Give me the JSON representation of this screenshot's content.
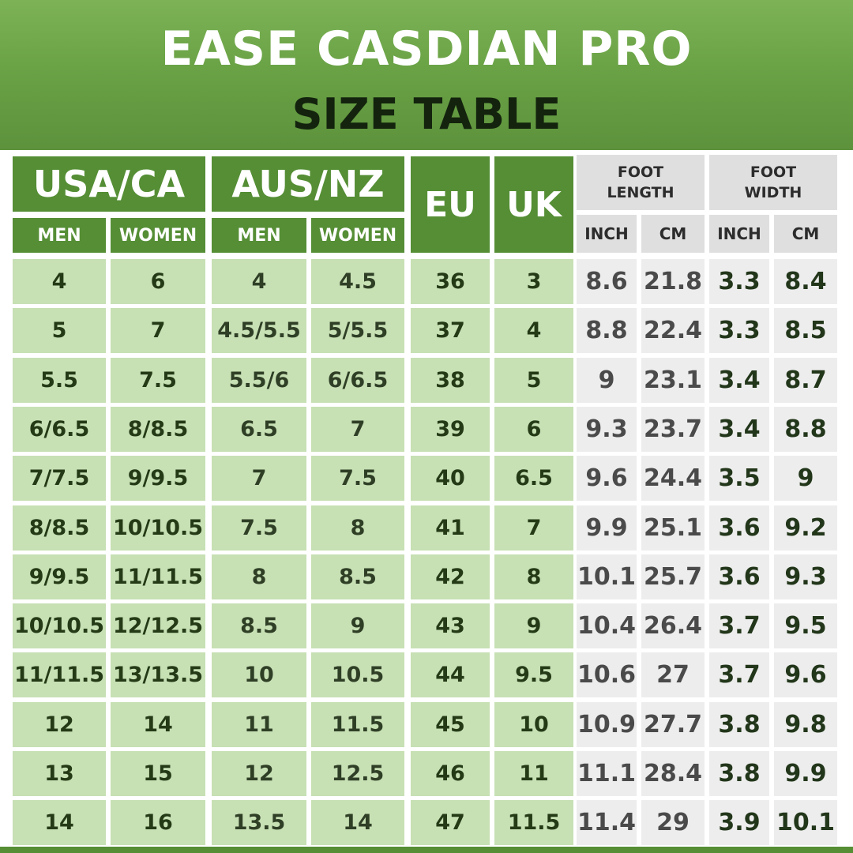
{
  "title": "EASE CASDIAN PRO",
  "subtitle": "SIZE TABLE",
  "headers": {
    "usa_ca": "USA/CA",
    "aus_nz": "AUS/NZ",
    "eu": "EU",
    "uk": "UK",
    "foot_length": "FOOT LENGTH",
    "foot_width": "FOOT WIDTH",
    "men": "MEN",
    "women": "WOMEN",
    "inch": "INCH",
    "cm": "CM"
  },
  "colors": {
    "header_green": "#558e35",
    "cell_light_green": "#c7e0b4",
    "cell_grey": "#ededed",
    "header_grey": "#dfdfdf"
  },
  "rows": [
    [
      "4",
      "6",
      "4",
      "4.5",
      "36",
      "3",
      "8.6",
      "21.8",
      "3.3",
      "8.4"
    ],
    [
      "5",
      "7",
      "4.5/5.5",
      "5/5.5",
      "37",
      "4",
      "8.8",
      "22.4",
      "3.3",
      "8.5"
    ],
    [
      "5.5",
      "7.5",
      "5.5/6",
      "6/6.5",
      "38",
      "5",
      "9",
      "23.1",
      "3.4",
      "8.7"
    ],
    [
      "6/6.5",
      "8/8.5",
      "6.5",
      "7",
      "39",
      "6",
      "9.3",
      "23.7",
      "3.4",
      "8.8"
    ],
    [
      "7/7.5",
      "9/9.5",
      "7",
      "7.5",
      "40",
      "6.5",
      "9.6",
      "24.4",
      "3.5",
      "9"
    ],
    [
      "8/8.5",
      "10/10.5",
      "7.5",
      "8",
      "41",
      "7",
      "9.9",
      "25.1",
      "3.6",
      "9.2"
    ],
    [
      "9/9.5",
      "11/11.5",
      "8",
      "8.5",
      "42",
      "8",
      "10.1",
      "25.7",
      "3.6",
      "9.3"
    ],
    [
      "10/10.5",
      "12/12.5",
      "8.5",
      "9",
      "43",
      "9",
      "10.4",
      "26.4",
      "3.7",
      "9.5"
    ],
    [
      "11/11.5",
      "13/13.5",
      "10",
      "10.5",
      "44",
      "9.5",
      "10.6",
      "27",
      "3.7",
      "9.6"
    ],
    [
      "12",
      "14",
      "11",
      "11.5",
      "45",
      "10",
      "10.9",
      "27.7",
      "3.8",
      "9.8"
    ],
    [
      "13",
      "15",
      "12",
      "12.5",
      "46",
      "11",
      "11.1",
      "28.4",
      "3.8",
      "9.9"
    ],
    [
      "14",
      "16",
      "13.5",
      "14",
      "47",
      "11.5",
      "11.4",
      "29",
      "3.9",
      "10.1"
    ]
  ]
}
